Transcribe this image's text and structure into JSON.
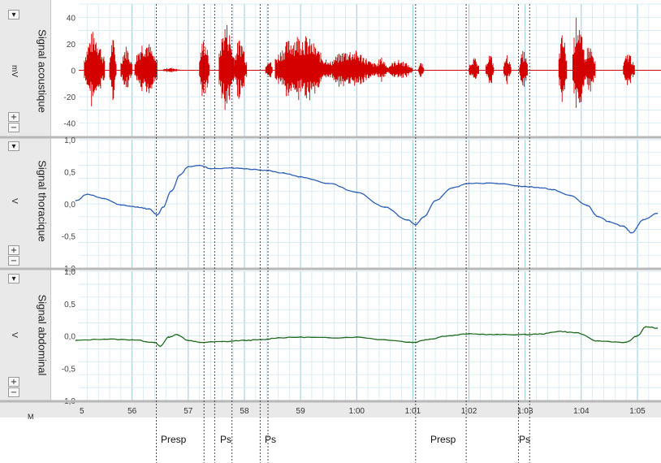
{
  "panels": [
    {
      "title": "Signal acoustique",
      "unit": "mV"
    },
    {
      "title": "Signal thoracique",
      "unit": "V"
    },
    {
      "title": "Signal abdominal",
      "unit": "V"
    }
  ],
  "controls": {
    "collapse": "▾",
    "plus": "+",
    "minus": "−"
  },
  "axis_unit_label": "M",
  "annotations": [
    "Presp",
    "Ps",
    "Ps",
    "Presp",
    "Ps"
  ],
  "colors": {
    "acoustic": "#d40000",
    "thoracic": "#2d5fb8",
    "abdominal": "#1f6b1f",
    "grid": "#cde6f2",
    "marker": "#222222"
  },
  "chart_data": [
    {
      "type": "line",
      "name": "Signal acoustique",
      "ylabel": "mV",
      "ylim": [
        -50,
        50
      ],
      "yticks": [
        -40,
        -20,
        0,
        20,
        40
      ],
      "x_ticks": [
        "5",
        "56",
        "57",
        "58",
        "59",
        "1:00",
        "1:01",
        "1:02",
        "1:03",
        "1:04",
        "1:05"
      ],
      "x_tick_seconds": [
        55,
        56,
        57,
        58,
        59,
        60,
        61,
        62,
        63,
        64,
        65
      ],
      "bursts": [
        {
          "start": 55.15,
          "end": 55.52,
          "amp": 30
        },
        {
          "start": 55.6,
          "end": 55.72,
          "amp": 25
        },
        {
          "start": 55.8,
          "end": 56.0,
          "amp": 19
        },
        {
          "start": 56.05,
          "end": 56.45,
          "amp": 24
        },
        {
          "start": 56.55,
          "end": 56.85,
          "amp": 2
        },
        {
          "start": 57.2,
          "end": 57.38,
          "amp": 25
        },
        {
          "start": 57.55,
          "end": 57.82,
          "amp": 37
        },
        {
          "start": 57.82,
          "end": 58.05,
          "amp": 25
        },
        {
          "start": 58.38,
          "end": 58.5,
          "amp": 10
        },
        {
          "start": 58.55,
          "end": 59.5,
          "amp": 28
        },
        {
          "start": 59.5,
          "end": 60.35,
          "amp": 16
        },
        {
          "start": 60.35,
          "end": 60.55,
          "amp": 10
        },
        {
          "start": 60.55,
          "end": 61.0,
          "amp": 8
        },
        {
          "start": 61.1,
          "end": 61.2,
          "amp": 6
        },
        {
          "start": 62.0,
          "end": 62.18,
          "amp": 10
        },
        {
          "start": 62.3,
          "end": 62.45,
          "amp": 13
        },
        {
          "start": 62.62,
          "end": 62.75,
          "amp": 12
        },
        {
          "start": 62.9,
          "end": 63.05,
          "amp": 15
        },
        {
          "start": 63.6,
          "end": 63.75,
          "amp": 28
        },
        {
          "start": 63.85,
          "end": 64.05,
          "amp": 45
        },
        {
          "start": 64.05,
          "end": 64.25,
          "amp": 20
        },
        {
          "start": 64.75,
          "end": 64.95,
          "amp": 14
        }
      ]
    },
    {
      "type": "line",
      "name": "Signal thoracique",
      "ylabel": "V",
      "ylim": [
        -1.0,
        1.0
      ],
      "yticks": [
        "1,0",
        "0,5",
        "0,0",
        "-0,5",
        "-1,0"
      ],
      "x": [
        55,
        55.2,
        55.5,
        55.8,
        56.1,
        56.3,
        56.45,
        56.55,
        56.7,
        56.85,
        57.0,
        57.2,
        57.4,
        57.8,
        58.1,
        58.4,
        58.7,
        59.0,
        59.5,
        60.0,
        60.5,
        60.9,
        61.05,
        61.2,
        61.4,
        61.7,
        62.0,
        62.5,
        63.0,
        63.3,
        63.5,
        63.8,
        64.1,
        64.3,
        64.5,
        64.75,
        64.9,
        65.1,
        65.35
      ],
      "values": [
        0.05,
        0.15,
        0.08,
        -0.02,
        -0.05,
        -0.08,
        -0.17,
        -0.05,
        0.2,
        0.45,
        0.58,
        0.6,
        0.55,
        0.56,
        0.54,
        0.52,
        0.48,
        0.42,
        0.32,
        0.18,
        -0.05,
        -0.25,
        -0.32,
        -0.2,
        0.05,
        0.25,
        0.32,
        0.32,
        0.27,
        0.25,
        0.22,
        0.13,
        -0.02,
        -0.2,
        -0.28,
        -0.35,
        -0.45,
        -0.25,
        -0.15
      ]
    },
    {
      "type": "line",
      "name": "Signal abdominal",
      "ylabel": "V",
      "ylim": [
        -1.0,
        1.0
      ],
      "yticks": [
        "1,0",
        "0,5",
        "0,0",
        "-0,5",
        "-1,0"
      ],
      "x": [
        55,
        55.5,
        56.0,
        56.4,
        56.5,
        56.65,
        56.8,
        57.0,
        57.2,
        57.6,
        58.0,
        58.3,
        58.6,
        59.0,
        59.5,
        60.0,
        60.5,
        61.0,
        61.3,
        61.6,
        62.0,
        62.5,
        63.0,
        63.3,
        63.6,
        63.9,
        64.3,
        64.8,
        65.0,
        65.15,
        65.35
      ],
      "values": [
        -0.07,
        -0.05,
        -0.06,
        -0.1,
        -0.16,
        -0.02,
        0.02,
        -0.07,
        -0.1,
        -0.09,
        -0.07,
        -0.06,
        -0.03,
        -0.02,
        -0.03,
        -0.02,
        -0.06,
        -0.1,
        -0.05,
        0.0,
        0.03,
        0.02,
        0.02,
        0.03,
        0.07,
        0.05,
        -0.08,
        -0.1,
        0.0,
        0.14,
        0.12
      ]
    }
  ]
}
